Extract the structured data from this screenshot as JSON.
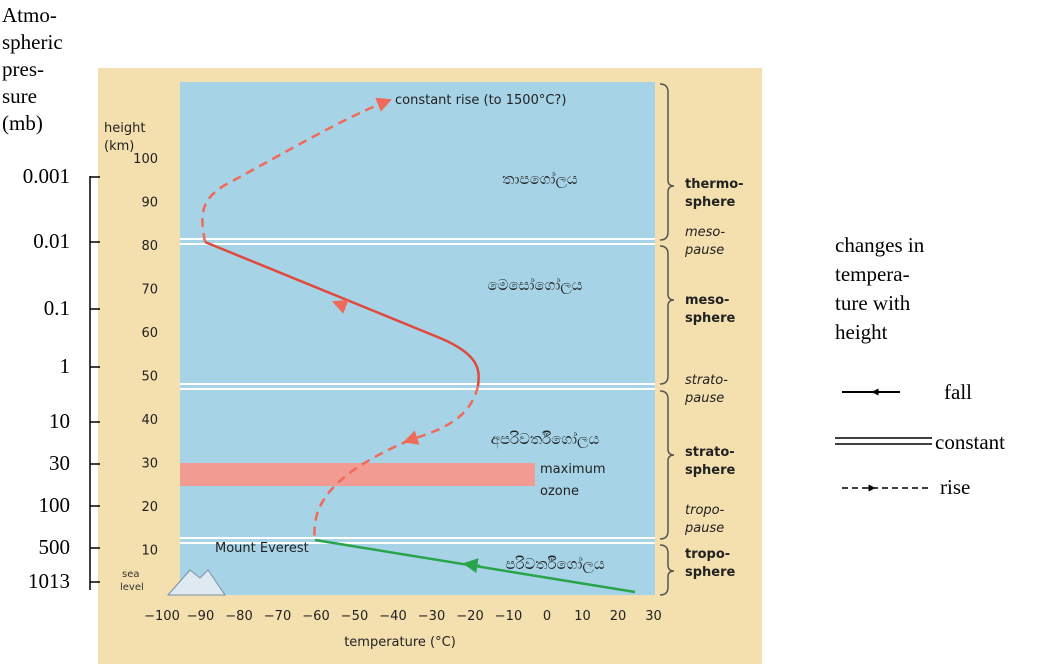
{
  "pressure_axis": {
    "title": [
      "Atmo-",
      "spheric",
      "pres-",
      "sure",
      "(mb)"
    ],
    "ticks": [
      "0.001",
      "0.01",
      "0.1",
      "1",
      "10",
      "30",
      "100",
      "500",
      "1013"
    ]
  },
  "height_axis": {
    "title": [
      "height",
      "(km)"
    ],
    "ticks": [
      "100",
      "90",
      "80",
      "70",
      "60",
      "50",
      "40",
      "30",
      "20",
      "10"
    ],
    "sea_level": [
      "sea",
      "level"
    ]
  },
  "temperature_axis": {
    "title": "temperature (°C)",
    "ticks": [
      "−100",
      "−90",
      "−80",
      "−70",
      "−60",
      "−50",
      "−40",
      "−30",
      "−20",
      "−10",
      "0",
      "10",
      "20",
      "30"
    ]
  },
  "annotations": {
    "top": "constant rise (to 1500°C?)",
    "ozone": [
      "maximum",
      "ozone"
    ],
    "everest": "Mount Everest"
  },
  "layers": {
    "thermosphere": [
      "thermo-",
      "sphere"
    ],
    "mesopause": [
      "meso-",
      "pause"
    ],
    "mesosphere": [
      "meso-",
      "sphere"
    ],
    "stratopause": [
      "strato-",
      "pause"
    ],
    "stratosphere": [
      "strato-",
      "sphere"
    ],
    "tropopause": [
      "tropo-",
      "pause"
    ],
    "troposphere": [
      "tropo-",
      "sphere"
    ]
  },
  "sinhala_labels": [
    "තාපගෝලය",
    "මෙසෝගෝලය",
    "අපරිවර්තීගෝලය",
    "පරිවර්තීගෝලය"
  ],
  "legend": {
    "title": [
      "changes in",
      "tempera-",
      "ture with",
      "height"
    ],
    "fall": "fall",
    "constant": "constant",
    "rise": "rise"
  }
}
